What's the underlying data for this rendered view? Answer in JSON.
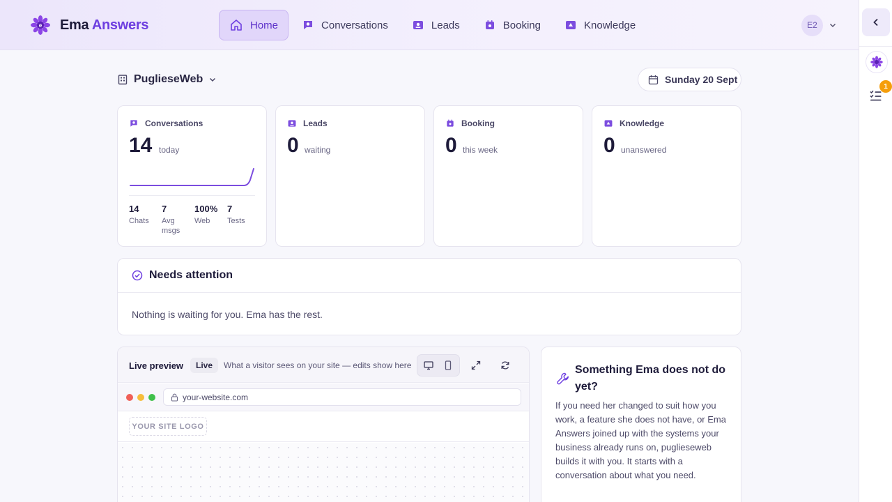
{
  "brand": {
    "name_part1": "Ema",
    "name_part2": "Answers"
  },
  "nav": {
    "items": [
      {
        "label": "Home",
        "icon": "home-icon",
        "active": true
      },
      {
        "label": "Conversations",
        "icon": "chat-icon"
      },
      {
        "label": "Leads",
        "icon": "leads-icon"
      },
      {
        "label": "Booking",
        "icon": "calendar-icon"
      },
      {
        "label": "Knowledge",
        "icon": "knowledge-icon"
      }
    ]
  },
  "user": {
    "initials": "E2"
  },
  "rail": {
    "badge_count": "1"
  },
  "workspace": {
    "name": "PuglieseWeb",
    "date": "Sunday 20 Sept"
  },
  "cards": [
    {
      "title": "Conversations",
      "value": "14",
      "sub": "today"
    },
    {
      "title": "Leads",
      "value": "0",
      "sub": "waiting"
    },
    {
      "title": "Booking",
      "value": "0",
      "sub": "this week"
    },
    {
      "title": "Knowledge",
      "value": "0",
      "sub": "unanswered"
    }
  ],
  "conversation_stats": [
    {
      "value": "14",
      "label": "Chats"
    },
    {
      "value": "7",
      "label": "Avg msgs"
    },
    {
      "value": "100%",
      "label": "Web"
    },
    {
      "value": "7",
      "label": "Tests"
    }
  ],
  "attention": {
    "title": "Needs attention",
    "message": "Nothing is waiting for you. Ema has the rest."
  },
  "preview": {
    "title": "Live preview",
    "badge": "Live",
    "description": "What a visitor sees on your site — edits show here",
    "url": "your-website.com",
    "logo_placeholder": "YOUR SITE LOGO"
  },
  "help": {
    "title": "Something Ema does not do yet?",
    "body": "If you need her changed to suit how you work, a feature she does not have, or Ema Answers joined up with the systems your business already runs on, puglieseweb builds it with you. It starts with a conversation about what you need."
  },
  "colors": {
    "accent": "#6d3ee0",
    "badge": "#f59e0b",
    "nav_active_bg": "#e1d6fa"
  }
}
